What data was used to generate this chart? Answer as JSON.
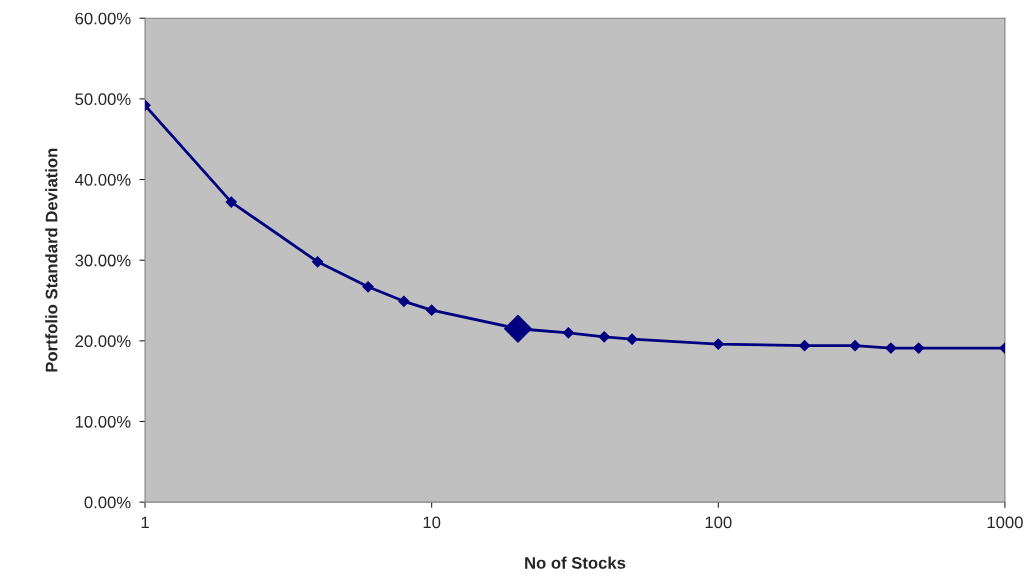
{
  "chart_data": {
    "type": "line",
    "xlabel": "No of Stocks",
    "ylabel": "Portfolio Standard Deviation",
    "log": "x",
    "grid": false,
    "legend": false,
    "marker": "diamond",
    "line_style": "solid",
    "xlim": [
      1,
      1000
    ],
    "xticks": [
      1,
      10,
      100,
      1000
    ],
    "ylim": [
      0,
      60
    ],
    "yticks": [
      {
        "value": 0,
        "label": "0.00%"
      },
      {
        "value": 10,
        "label": "10.00%"
      },
      {
        "value": 20,
        "label": "20.00%"
      },
      {
        "value": 30,
        "label": "30.00%"
      },
      {
        "value": 40,
        "label": "40.00%"
      },
      {
        "value": 50,
        "label": "50.00%"
      },
      {
        "value": 60,
        "label": "60.00%"
      }
    ],
    "series": [
      {
        "color": "#000080",
        "x": [
          1,
          2,
          4,
          6,
          8,
          10,
          20,
          30,
          40,
          50,
          100,
          200,
          300,
          400,
          500,
          1000
        ],
        "values": [
          49.2,
          37.2,
          29.8,
          26.7,
          24.9,
          23.8,
          21.5,
          21.0,
          20.5,
          20.2,
          19.6,
          19.4,
          19.4,
          19.1,
          19.1,
          19.1
        ]
      },
      {
        "type": "scatter",
        "color": "#000080",
        "x": [
          20
        ],
        "values": [
          21.5
        ]
      }
    ]
  }
}
